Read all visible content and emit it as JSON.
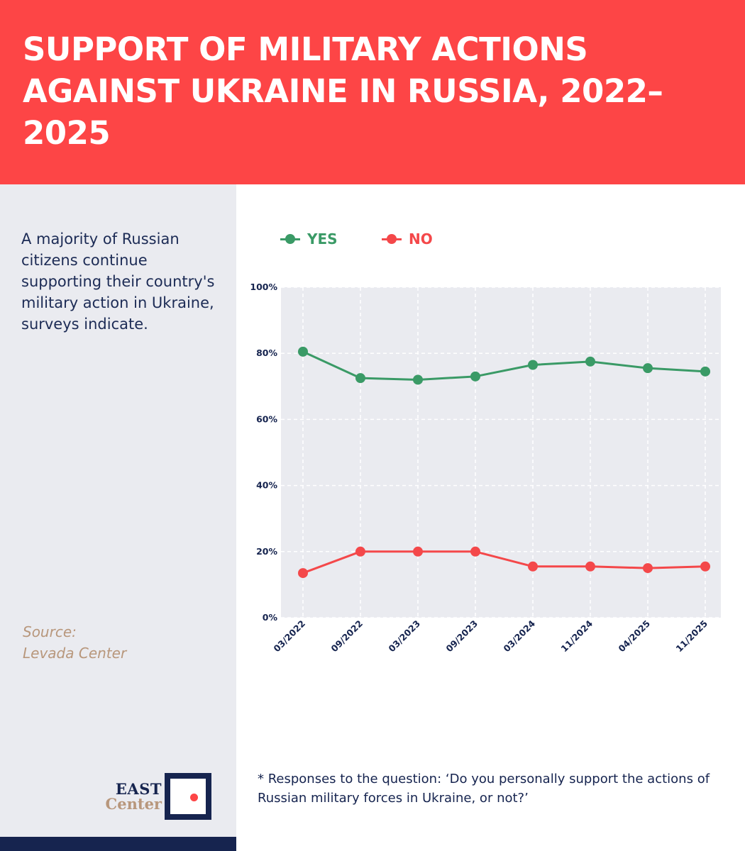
{
  "header": {
    "title": "SUPPORT OF MILITARY ACTIONS AGAINST UKRAINE IN RUSSIA, 2022–2025"
  },
  "sidebar": {
    "intro": "A majority of Russian citizens continue supporting their country's military action in Ukraine, surveys indicate.",
    "source_label": "Source:",
    "source_name": "Levada Center",
    "logo": {
      "line1": "EAST",
      "line2": "Center"
    }
  },
  "footnote": "* Responses to the question: ‘Do you personally support the actions of Russian military forces in Ukraine, or not?’",
  "colors": {
    "header_bg": "#fd4546",
    "yes": "#3a9a66",
    "no": "#f4484a",
    "navy": "#16244f",
    "source": "#b8977c",
    "plot_bg": "#eaebf0"
  },
  "chart_data": {
    "type": "line",
    "title": "SUPPORT OF MILITARY ACTIONS AGAINST UKRAINE IN RUSSIA, 2022–2025",
    "xlabel": "",
    "ylabel": "",
    "categories": [
      "03/2022",
      "09/2022",
      "03/2023",
      "09/2023",
      "03/2024",
      "11/2024",
      "04/2025",
      "11/2025"
    ],
    "yticks": [
      "0%",
      "20%",
      "40%",
      "60%",
      "80%",
      "100%"
    ],
    "ylim": [
      0,
      100
    ],
    "grid": true,
    "legend_position": "top-left",
    "series": [
      {
        "name": "YES",
        "color": "#3a9a66",
        "values": [
          80.5,
          72.5,
          72,
          73,
          76.5,
          77.5,
          75.5,
          74.5
        ]
      },
      {
        "name": "NO",
        "color": "#f4484a",
        "values": [
          13.5,
          20,
          20,
          20,
          15.5,
          15.5,
          15,
          15.5
        ]
      }
    ]
  }
}
